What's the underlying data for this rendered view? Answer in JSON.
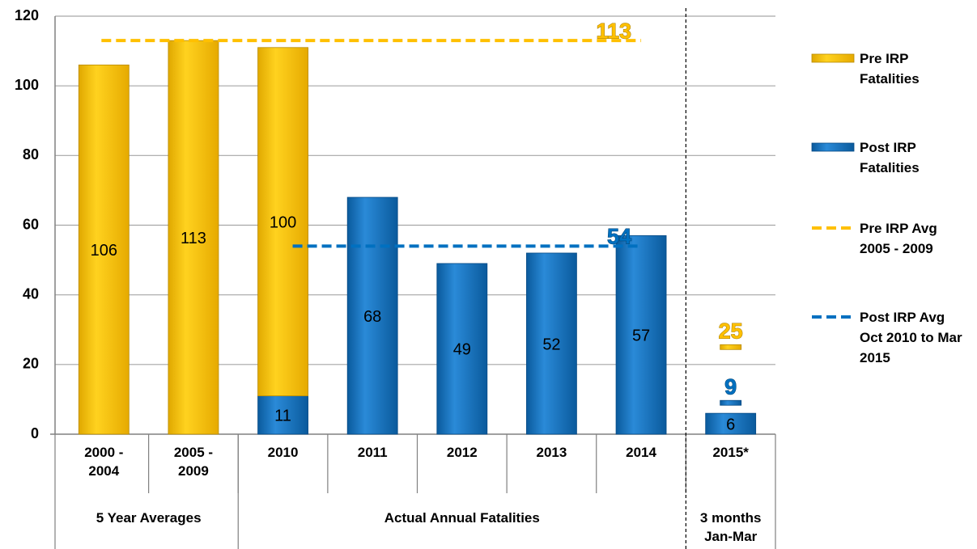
{
  "chart_data": {
    "type": "bar",
    "stacked": true,
    "categories": [
      "2000 - 2004",
      "2005 - 2009",
      "2010",
      "2011",
      "2012",
      "2013",
      "2014",
      "2015*"
    ],
    "groups": [
      {
        "label": "5 Year Averages",
        "span": 2
      },
      {
        "label": "Actual Annual Fatalities",
        "span": 5
      },
      {
        "label": "3 months Jan-Mar",
        "span": 1
      }
    ],
    "series": [
      {
        "name": "Pre IRP Fatalities",
        "color": "#ffc000",
        "values": [
          106,
          113,
          100,
          null,
          null,
          null,
          null,
          null
        ]
      },
      {
        "name": "Post IRP Fatalities",
        "color": "#0070c0",
        "values": [
          null,
          null,
          11,
          68,
          49,
          52,
          57,
          6
        ]
      }
    ],
    "reference_lines": [
      {
        "name": "Pre IRP Avg 2005 - 2009",
        "color": "#ffc000",
        "value": 113,
        "marker_2015": 25
      },
      {
        "name": "Post IRP Avg Oct 2010 to Mar 2015",
        "color": "#0070c0",
        "value": 54,
        "marker_2015": 9
      }
    ],
    "ylim": [
      0,
      120
    ],
    "yticks": [
      0,
      20,
      40,
      60,
      80,
      100,
      120
    ],
    "grid": true,
    "legend": "right"
  }
}
